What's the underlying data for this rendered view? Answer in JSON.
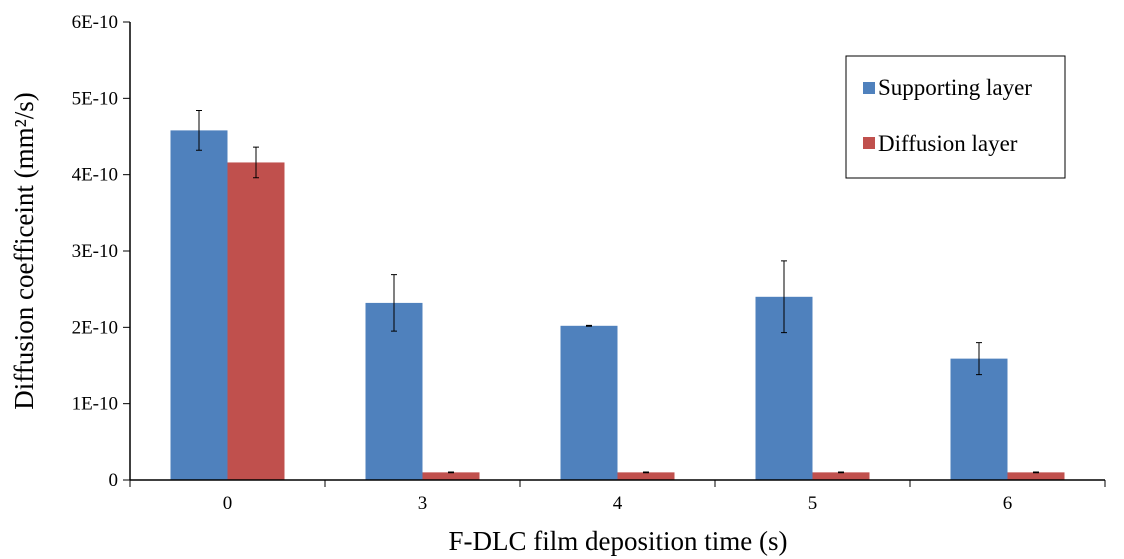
{
  "chart_data": {
    "type": "bar",
    "categories": [
      "0",
      "3",
      "4",
      "5",
      "6"
    ],
    "series": [
      {
        "name": "Supporting layer",
        "color": "#4F81BD",
        "values": [
          4.58e-10,
          2.32e-10,
          2.02e-10,
          2.4e-10,
          1.59e-10
        ],
        "errors": [
          2.6e-11,
          3.7e-11,
          5e-13,
          4.7e-11,
          2.1e-11
        ]
      },
      {
        "name": "Diffusion layer",
        "color": "#C0504D",
        "values": [
          4.16e-10,
          1e-11,
          1e-11,
          1e-11,
          1e-11
        ],
        "errors": [
          2e-11,
          5e-13,
          5e-13,
          5e-13,
          5e-13
        ]
      }
    ],
    "yticks": [
      0,
      1e-10,
      2e-10,
      3e-10,
      4e-10,
      5e-10,
      6e-10
    ],
    "ytick_labels": [
      "0",
      "1E-10",
      "2E-10",
      "3E-10",
      "4E-10",
      "5E-10",
      "6E-10"
    ],
    "ylim": [
      0,
      6e-10
    ],
    "xlabel": "F-DLC film deposition time (s)",
    "ylabel": "Diffusion coefficeint (mm²/s)",
    "grid": false,
    "legend_position": "top-right"
  }
}
